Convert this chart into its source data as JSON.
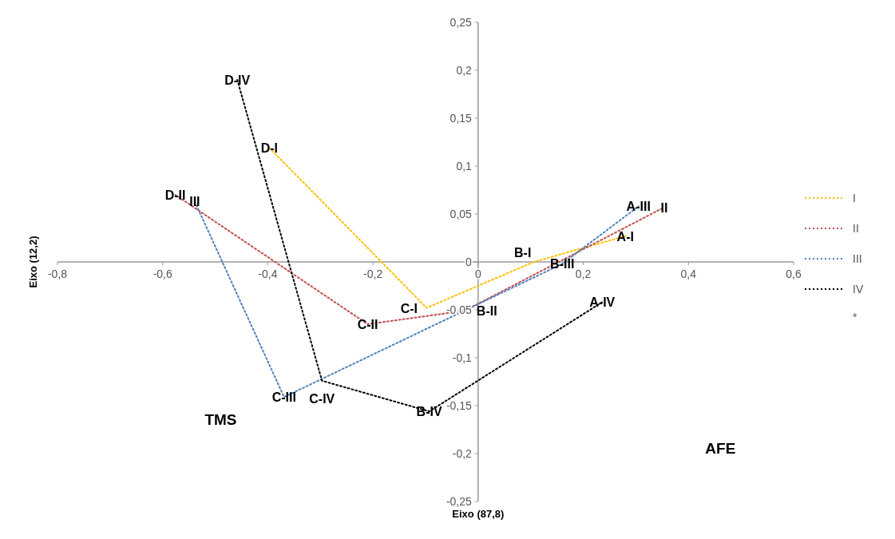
{
  "chart_data": {
    "type": "line",
    "xlabel": "Eixo (87,8)",
    "ylabel": "Eixo (12,2)",
    "xlim": [
      -0.8,
      0.6
    ],
    "xticks": [
      {
        "value": -0.8,
        "label": "-0,8"
      },
      {
        "value": -0.6,
        "label": "-0,6"
      },
      {
        "value": -0.4,
        "label": "-0,4"
      },
      {
        "value": -0.2,
        "label": "-0,2"
      },
      0,
      {
        "value": 0.2,
        "label": "0,2"
      },
      {
        "value": 0.4,
        "label": "0,4"
      },
      {
        "value": 0.6,
        "label": "0,6"
      }
    ],
    "ylim": [
      -0.25,
      0.25
    ],
    "yticks": [
      {
        "value": -0.25,
        "label": "-0,25"
      },
      {
        "value": -0.2,
        "label": "-0,2"
      },
      {
        "value": -0.15,
        "label": "-0,15"
      },
      {
        "value": -0.1,
        "label": "-0,1"
      },
      {
        "value": -0.05,
        "label": "-0,05"
      },
      0,
      {
        "value": 0.05,
        "label": "0,05"
      },
      {
        "value": 0.1,
        "label": "0,1"
      },
      {
        "value": 0.15,
        "label": "0,15"
      },
      {
        "value": 0.2,
        "label": "0,2"
      },
      {
        "value": 0.25,
        "label": "0,25"
      }
    ],
    "series": [
      {
        "name": "I",
        "color": "#ffc000",
        "x": [
          -0.397,
          -0.098,
          0.106,
          0.28
        ],
        "values": [
          0.119,
          -0.048,
          0,
          0.027
        ]
      },
      {
        "name": "II",
        "color": "#c0504d",
        "x": [
          -0.576,
          -0.21,
          -0.026,
          0.354
        ],
        "values": [
          0.07,
          -0.065,
          -0.051,
          0.057
        ]
      },
      {
        "name": "III",
        "color": "#4f81bd",
        "x": [
          -0.539,
          -0.369,
          0.16,
          0.305
        ],
        "values": [
          0.063,
          -0.141,
          -0.002,
          0.058
        ]
      },
      {
        "name": "IV",
        "color": "#000000",
        "x": [
          -0.458,
          -0.297,
          -0.093,
          0.236
        ],
        "values": [
          0.19,
          -0.124,
          -0.156,
          -0.042
        ]
      },
      {
        "name": "*"
      }
    ],
    "annotations": [
      {
        "text": "D-I",
        "x": -0.397,
        "y": 0.119
      },
      {
        "text": "C-I",
        "x": -0.098,
        "y": -0.048
      },
      {
        "text": "B-I",
        "x": 0.106,
        "y": 0
      },
      {
        "text": "A-I",
        "x": 0.28,
        "y": 0.027
      },
      {
        "text": "D-II",
        "x": -0.576,
        "y": 0.07
      },
      {
        "text": "C-II",
        "x": -0.21,
        "y": -0.065
      },
      {
        "text": "B-II",
        "x": -0.026,
        "y": -0.051
      },
      {
        "text": "II",
        "x": 0.354,
        "y": 0.057
      },
      {
        "text": "III",
        "x": -0.539,
        "y": 0.063
      },
      {
        "text": "C-III",
        "x": -0.369,
        "y": -0.141
      },
      {
        "text": "B-III",
        "x": 0.16,
        "y": -0.002
      },
      {
        "text": "A-III",
        "x": 0.305,
        "y": 0.058
      },
      {
        "text": "D-IV",
        "x": -0.458,
        "y": 0.19
      },
      {
        "text": "C-IV",
        "x": -0.297,
        "y": -0.124
      },
      {
        "text": "B-IV",
        "x": -0.093,
        "y": -0.156
      },
      {
        "text": "A-IV",
        "x": 0.236,
        "y": -0.042
      },
      "TMS",
      "AFE"
    ],
    "legend": "right",
    "grid": false,
    "marker": "none",
    "line_style": "dotted"
  }
}
